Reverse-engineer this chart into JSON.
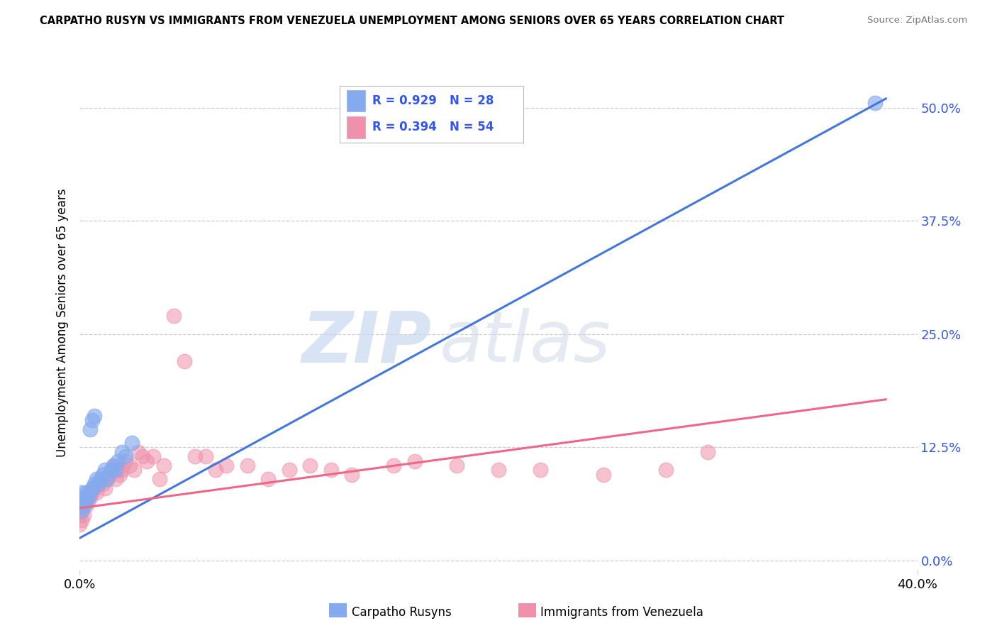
{
  "title": "CARPATHO RUSYN VS IMMIGRANTS FROM VENEZUELA UNEMPLOYMENT AMONG SENIORS OVER 65 YEARS CORRELATION CHART",
  "source": "Source: ZipAtlas.com",
  "ylabel": "Unemployment Among Seniors over 65 years",
  "legend_r1": "R = 0.929",
  "legend_n1": "N = 28",
  "legend_r2": "R = 0.394",
  "legend_n2": "N = 54",
  "blue_color": "#85AAEE",
  "pink_color": "#F090AA",
  "blue_line_color": "#4477DD",
  "pink_line_color": "#EE6688",
  "legend_text_color": "#3355EE",
  "watermark_zip": "ZIP",
  "watermark_atlas": "atlas",
  "ytick_values": [
    0.0,
    0.125,
    0.25,
    0.375,
    0.5
  ],
  "ytick_labels": [
    "0.0%",
    "12.5%",
    "25.0%",
    "37.5%",
    "50.0%"
  ],
  "xmin": 0.0,
  "xmax": 0.4,
  "ymin": -0.01,
  "ymax": 0.535,
  "blue_scatter_x": [
    0.001,
    0.001,
    0.001,
    0.002,
    0.002,
    0.003,
    0.003,
    0.004,
    0.005,
    0.006,
    0.007,
    0.008,
    0.009,
    0.01,
    0.011,
    0.012,
    0.013,
    0.015,
    0.016,
    0.017,
    0.018,
    0.02,
    0.022,
    0.025,
    0.005,
    0.006,
    0.007,
    0.38
  ],
  "blue_scatter_y": [
    0.055,
    0.065,
    0.075,
    0.06,
    0.07,
    0.065,
    0.075,
    0.07,
    0.075,
    0.08,
    0.085,
    0.09,
    0.085,
    0.09,
    0.095,
    0.1,
    0.09,
    0.1,
    0.105,
    0.1,
    0.11,
    0.12,
    0.115,
    0.13,
    0.145,
    0.155,
    0.16,
    0.505
  ],
  "pink_scatter_x": [
    0.0,
    0.0,
    0.001,
    0.001,
    0.002,
    0.002,
    0.003,
    0.003,
    0.004,
    0.005,
    0.006,
    0.007,
    0.008,
    0.009,
    0.01,
    0.011,
    0.012,
    0.013,
    0.014,
    0.015,
    0.016,
    0.017,
    0.018,
    0.019,
    0.02,
    0.022,
    0.024,
    0.026,
    0.028,
    0.03,
    0.032,
    0.035,
    0.038,
    0.04,
    0.045,
    0.05,
    0.055,
    0.06,
    0.065,
    0.07,
    0.08,
    0.09,
    0.1,
    0.11,
    0.12,
    0.13,
    0.15,
    0.16,
    0.18,
    0.2,
    0.22,
    0.25,
    0.28,
    0.3
  ],
  "pink_scatter_y": [
    0.04,
    0.05,
    0.045,
    0.055,
    0.05,
    0.065,
    0.06,
    0.07,
    0.065,
    0.07,
    0.075,
    0.08,
    0.075,
    0.085,
    0.09,
    0.085,
    0.08,
    0.09,
    0.095,
    0.1,
    0.105,
    0.09,
    0.1,
    0.095,
    0.1,
    0.11,
    0.105,
    0.1,
    0.12,
    0.115,
    0.11,
    0.115,
    0.09,
    0.105,
    0.27,
    0.22,
    0.115,
    0.115,
    0.1,
    0.105,
    0.105,
    0.09,
    0.1,
    0.105,
    0.1,
    0.095,
    0.105,
    0.11,
    0.105,
    0.1,
    0.1,
    0.095,
    0.1,
    0.12
  ],
  "blue_line_x": [
    0.0,
    0.385
  ],
  "blue_line_y": [
    0.025,
    0.51
  ],
  "pink_line_x": [
    0.0,
    0.385
  ],
  "pink_line_y": [
    0.058,
    0.178
  ],
  "label_carpatho": "Carpatho Rusyns",
  "label_venezuela": "Immigrants from Venezuela"
}
